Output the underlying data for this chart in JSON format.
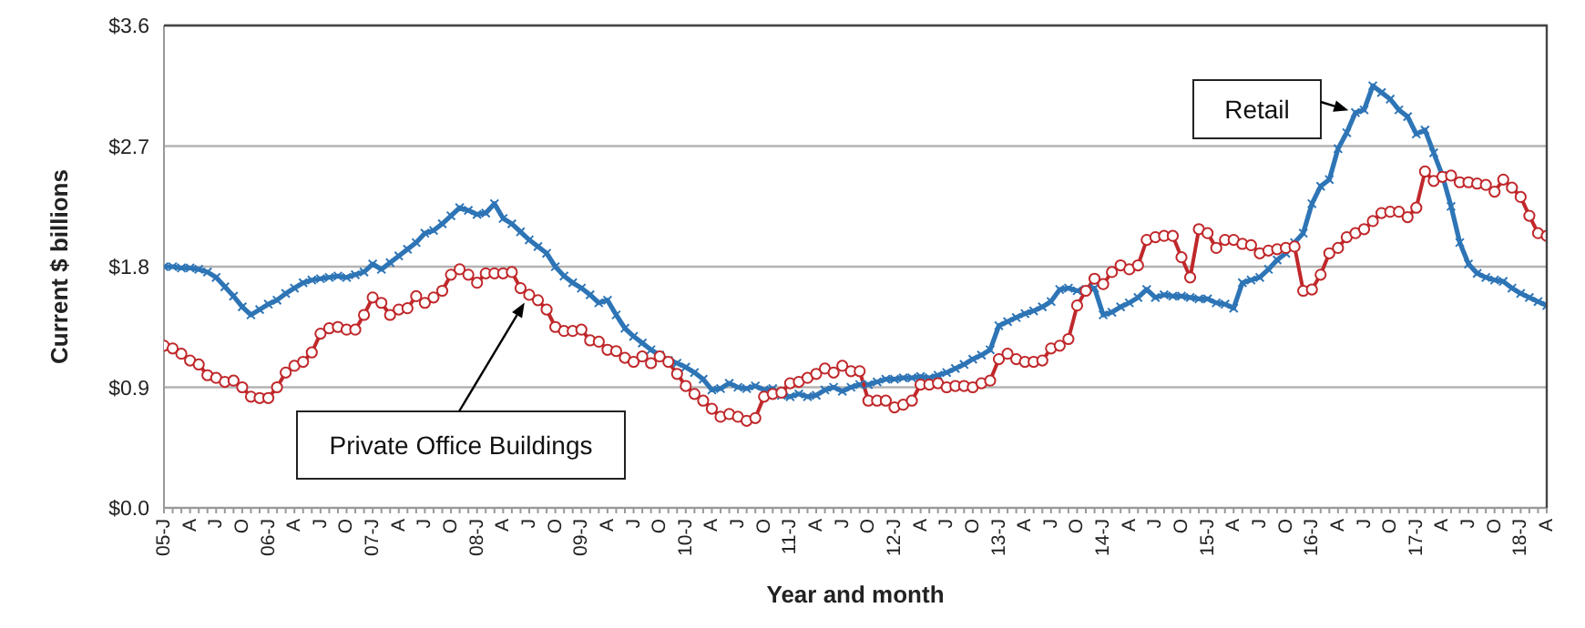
{
  "chart_data": {
    "type": "line",
    "xlabel": "Year and month",
    "ylabel": "Current $ billions",
    "categories": [
      "05-J",
      null,
      null,
      "A",
      null,
      null,
      "J",
      null,
      null,
      "O",
      null,
      null,
      "06-J",
      null,
      null,
      "A",
      null,
      null,
      "J",
      null,
      null,
      "O",
      null,
      null,
      "07-J",
      null,
      null,
      "A",
      null,
      null,
      "J",
      null,
      null,
      "O",
      null,
      null,
      "08-J",
      null,
      null,
      "A",
      null,
      null,
      "J",
      null,
      null,
      "O",
      null,
      null,
      "09-J",
      null,
      null,
      "A",
      null,
      null,
      "J",
      null,
      null,
      "O",
      null,
      null,
      "10-J",
      null,
      null,
      "A",
      null,
      null,
      "J",
      null,
      null,
      "O",
      null,
      null,
      "11-J",
      null,
      null,
      "A",
      null,
      null,
      "J",
      null,
      null,
      "O",
      null,
      null,
      "12-J",
      null,
      null,
      "A",
      null,
      null,
      "J",
      null,
      null,
      "O",
      null,
      null,
      "13-J",
      null,
      null,
      "A",
      null,
      null,
      "J",
      null,
      null,
      "O",
      null,
      null,
      "14-J",
      null,
      null,
      "A",
      null,
      null,
      "J",
      null,
      null,
      "O",
      null,
      null,
      "15-J",
      null,
      null,
      "A",
      null,
      null,
      "J",
      null,
      null,
      "O",
      null,
      null,
      "16-J",
      null,
      null,
      "A",
      null,
      null,
      "J",
      null,
      null,
      "O",
      null,
      null,
      "17-J",
      null,
      null,
      "A",
      null,
      null,
      "J",
      null,
      null,
      "O",
      null,
      null,
      "18-J",
      null,
      null,
      "A"
    ],
    "ylim": [
      0,
      3.6
    ],
    "yticks": [
      {
        "value": 0,
        "label": "$0.0"
      },
      {
        "value": 0.9,
        "label": "$0.9"
      },
      {
        "value": 1.8,
        "label": "$1.8"
      },
      {
        "value": 2.7,
        "label": "$2.7"
      },
      {
        "value": 3.6,
        "label": "$3.6"
      }
    ],
    "grid": "y",
    "line_style": "solid",
    "series": [
      {
        "name": "Retail",
        "color": "#2e75b6",
        "marker": "cross",
        "values": [
          1.8,
          1.8,
          1.79,
          1.79,
          1.78,
          1.76,
          1.72,
          1.65,
          1.58,
          1.5,
          1.44,
          1.48,
          1.52,
          1.55,
          1.6,
          1.64,
          1.68,
          1.7,
          1.71,
          1.72,
          1.73,
          1.72,
          1.74,
          1.76,
          1.82,
          1.78,
          1.83,
          1.88,
          1.93,
          1.98,
          2.05,
          2.07,
          2.12,
          2.18,
          2.24,
          2.22,
          2.19,
          2.2,
          2.27,
          2.16,
          2.12,
          2.06,
          2.0,
          1.95,
          1.9,
          1.8,
          1.73,
          1.68,
          1.64,
          1.59,
          1.53,
          1.55,
          1.44,
          1.34,
          1.28,
          1.23,
          1.18,
          1.14,
          1.1,
          1.08,
          1.05,
          1.01,
          0.96,
          0.88,
          0.89,
          0.93,
          0.9,
          0.89,
          0.91,
          0.88,
          0.89,
          0.84,
          0.83,
          0.85,
          0.83,
          0.84,
          0.88,
          0.9,
          0.87,
          0.9,
          0.92,
          0.92,
          0.94,
          0.96,
          0.96,
          0.97,
          0.97,
          0.98,
          0.97,
          0.99,
          1.01,
          1.04,
          1.07,
          1.11,
          1.14,
          1.18,
          1.36,
          1.39,
          1.42,
          1.45,
          1.47,
          1.5,
          1.54,
          1.63,
          1.64,
          1.62,
          1.63,
          1.64,
          1.44,
          1.46,
          1.5,
          1.53,
          1.57,
          1.63,
          1.57,
          1.59,
          1.58,
          1.58,
          1.57,
          1.56,
          1.56,
          1.53,
          1.52,
          1.49,
          1.68,
          1.7,
          1.72,
          1.78,
          1.85,
          1.9,
          1.98,
          2.05,
          2.27,
          2.4,
          2.45,
          2.68,
          2.8,
          2.95,
          2.97,
          3.15,
          3.1,
          3.05,
          2.97,
          2.92,
          2.79,
          2.82,
          2.65,
          2.48,
          2.25,
          1.98,
          1.82,
          1.75,
          1.72,
          1.7,
          1.69,
          1.64,
          1.6,
          1.57,
          1.54,
          1.51
        ]
      },
      {
        "name": "Private Office Buildings",
        "color": "#c0282b",
        "marker": "circle",
        "values": [
          1.21,
          1.19,
          1.15,
          1.1,
          1.07,
          0.99,
          0.97,
          0.94,
          0.95,
          0.9,
          0.83,
          0.82,
          0.82,
          0.9,
          1.01,
          1.06,
          1.09,
          1.16,
          1.3,
          1.34,
          1.35,
          1.33,
          1.33,
          1.44,
          1.57,
          1.53,
          1.44,
          1.48,
          1.49,
          1.58,
          1.53,
          1.57,
          1.62,
          1.74,
          1.78,
          1.74,
          1.68,
          1.75,
          1.75,
          1.75,
          1.76,
          1.64,
          1.59,
          1.55,
          1.48,
          1.35,
          1.32,
          1.32,
          1.33,
          1.25,
          1.24,
          1.18,
          1.17,
          1.12,
          1.09,
          1.13,
          1.08,
          1.13,
          1.09,
          1.0,
          0.91,
          0.85,
          0.8,
          0.74,
          0.68,
          0.7,
          0.68,
          0.65,
          0.67,
          0.83,
          0.85,
          0.86,
          0.93,
          0.94,
          0.97,
          1.0,
          1.04,
          1.01,
          1.06,
          1.02,
          1.02,
          0.8,
          0.8,
          0.8,
          0.75,
          0.77,
          0.8,
          0.92,
          0.92,
          0.93,
          0.9,
          0.91,
          0.91,
          0.9,
          0.93,
          0.95,
          1.11,
          1.15,
          1.11,
          1.09,
          1.09,
          1.1,
          1.19,
          1.21,
          1.26,
          1.51,
          1.62,
          1.71,
          1.67,
          1.76,
          1.81,
          1.78,
          1.81,
          2.0,
          2.02,
          2.03,
          2.03,
          1.87,
          1.72,
          2.08,
          2.05,
          1.94,
          2.0,
          2.0,
          1.97,
          1.96,
          1.9,
          1.92,
          1.93,
          1.94,
          1.95,
          1.62,
          1.63,
          1.74,
          1.9,
          1.94,
          2.02,
          2.05,
          2.08,
          2.14,
          2.2,
          2.21,
          2.21,
          2.17,
          2.24,
          2.51,
          2.44,
          2.47,
          2.48,
          2.43,
          2.43,
          2.42,
          2.41,
          2.36,
          2.45,
          2.39,
          2.32,
          2.18,
          2.05,
          2.03
        ]
      }
    ]
  }
}
